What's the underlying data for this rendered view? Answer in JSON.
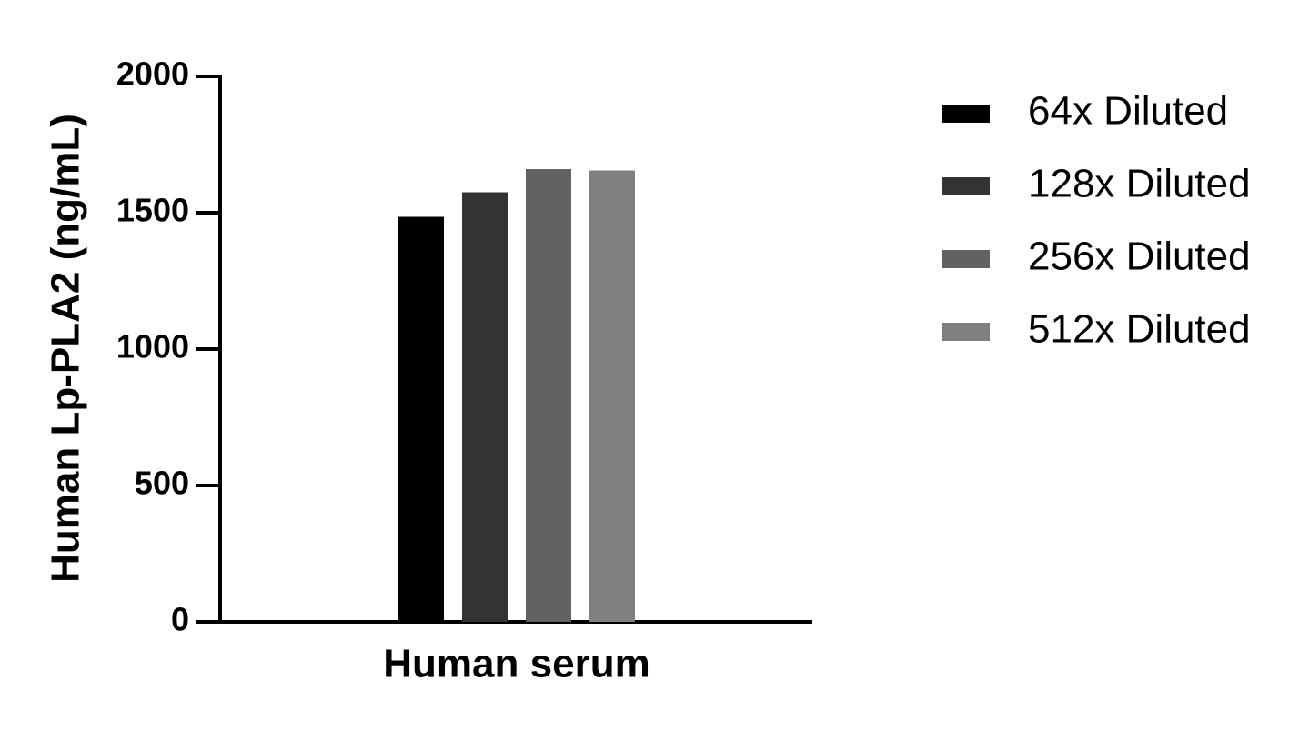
{
  "chart_data": {
    "type": "bar",
    "y_label": "Human Lp-PLA2 (ng/mL)",
    "categories": [
      "Human serum"
    ],
    "series": [
      {
        "name": "64x Diluted",
        "color": "#000000",
        "values": [
          1485
        ]
      },
      {
        "name": "128x Diluted",
        "color": "#333333",
        "values": [
          1575
        ]
      },
      {
        "name": "256x Diluted",
        "color": "#626262",
        "values": [
          1660
        ]
      },
      {
        "name": "512x Diluted",
        "color": "#808080",
        "values": [
          1655
        ]
      }
    ],
    "ylim": [
      0,
      2000
    ],
    "yticks": [
      0,
      500,
      1000,
      1500,
      2000
    ],
    "grid": false,
    "legend": "right"
  }
}
